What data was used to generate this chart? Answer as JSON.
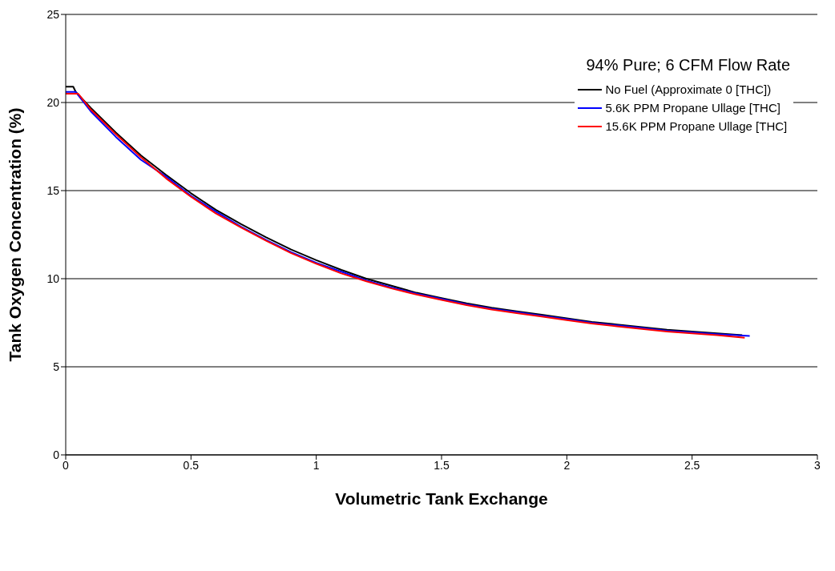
{
  "chart_data": {
    "type": "line",
    "xlabel": "Volumetric Tank Exchange",
    "ylabel": "Tank Oxygen Concentration (%)",
    "legend_title": "94% Pure; 6 CFM Flow Rate",
    "xlim": [
      0,
      3
    ],
    "xticks": [
      0,
      0.5,
      1,
      1.5,
      2,
      2.5,
      3
    ],
    "ylim": [
      0,
      25
    ],
    "yticks": [
      0,
      5,
      10,
      15,
      20,
      25
    ],
    "grid": "y",
    "legend": "top right",
    "marker": "none",
    "line_style": "solid",
    "series": [
      {
        "name": "No Fuel (Approximate 0 [THC])",
        "color": "#000000",
        "x": [
          0,
          0.03,
          0.04,
          0.1,
          0.2,
          0.3,
          0.4,
          0.5,
          0.6,
          0.7,
          0.8,
          0.9,
          1.0,
          1.1,
          1.2,
          1.3,
          1.4,
          1.5,
          1.6,
          1.7,
          1.8,
          1.9,
          2.0,
          2.1,
          2.2,
          2.3,
          2.4,
          2.5,
          2.6,
          2.7
        ],
        "values": [
          20.9,
          20.9,
          20.6,
          19.7,
          18.3,
          17.0,
          15.9,
          14.85,
          13.9,
          13.1,
          12.35,
          11.65,
          11.05,
          10.5,
          10.0,
          9.6,
          9.2,
          8.9,
          8.6,
          8.35,
          8.15,
          7.95,
          7.75,
          7.55,
          7.4,
          7.25,
          7.1,
          7.0,
          6.9,
          6.8
        ]
      },
      {
        "name": "5.6K PPM Propane Ullage [THC]",
        "color": "#0000ff",
        "x": [
          0,
          0.04,
          0.1,
          0.2,
          0.3,
          0.4,
          0.5,
          0.6,
          0.7,
          0.8,
          0.9,
          1.0,
          1.1,
          1.2,
          1.3,
          1.4,
          1.5,
          1.6,
          1.7,
          1.8,
          1.9,
          2.0,
          2.1,
          2.2,
          2.3,
          2.4,
          2.5,
          2.6,
          2.73
        ],
        "values": [
          20.6,
          20.6,
          19.5,
          18.05,
          16.75,
          15.8,
          14.7,
          13.8,
          12.95,
          12.2,
          11.5,
          10.9,
          10.4,
          9.9,
          9.5,
          9.15,
          8.85,
          8.55,
          8.3,
          8.1,
          7.9,
          7.7,
          7.5,
          7.35,
          7.2,
          7.05,
          6.95,
          6.85,
          6.75
        ]
      },
      {
        "name": "15.6K PPM Propane Ullage [THC]",
        "color": "#ff0000",
        "x": [
          0,
          0.05,
          0.1,
          0.2,
          0.3,
          0.4,
          0.5,
          0.6,
          0.7,
          0.8,
          0.9,
          1.0,
          1.1,
          1.2,
          1.3,
          1.4,
          1.5,
          1.6,
          1.7,
          1.8,
          1.9,
          2.0,
          2.1,
          2.2,
          2.3,
          2.4,
          2.5,
          2.6,
          2.71
        ],
        "values": [
          20.5,
          20.5,
          19.6,
          18.2,
          16.9,
          15.7,
          14.65,
          13.7,
          12.9,
          12.15,
          11.45,
          10.85,
          10.3,
          9.85,
          9.45,
          9.1,
          8.8,
          8.5,
          8.25,
          8.05,
          7.85,
          7.65,
          7.45,
          7.3,
          7.15,
          7.0,
          6.9,
          6.8,
          6.65
        ]
      }
    ]
  }
}
